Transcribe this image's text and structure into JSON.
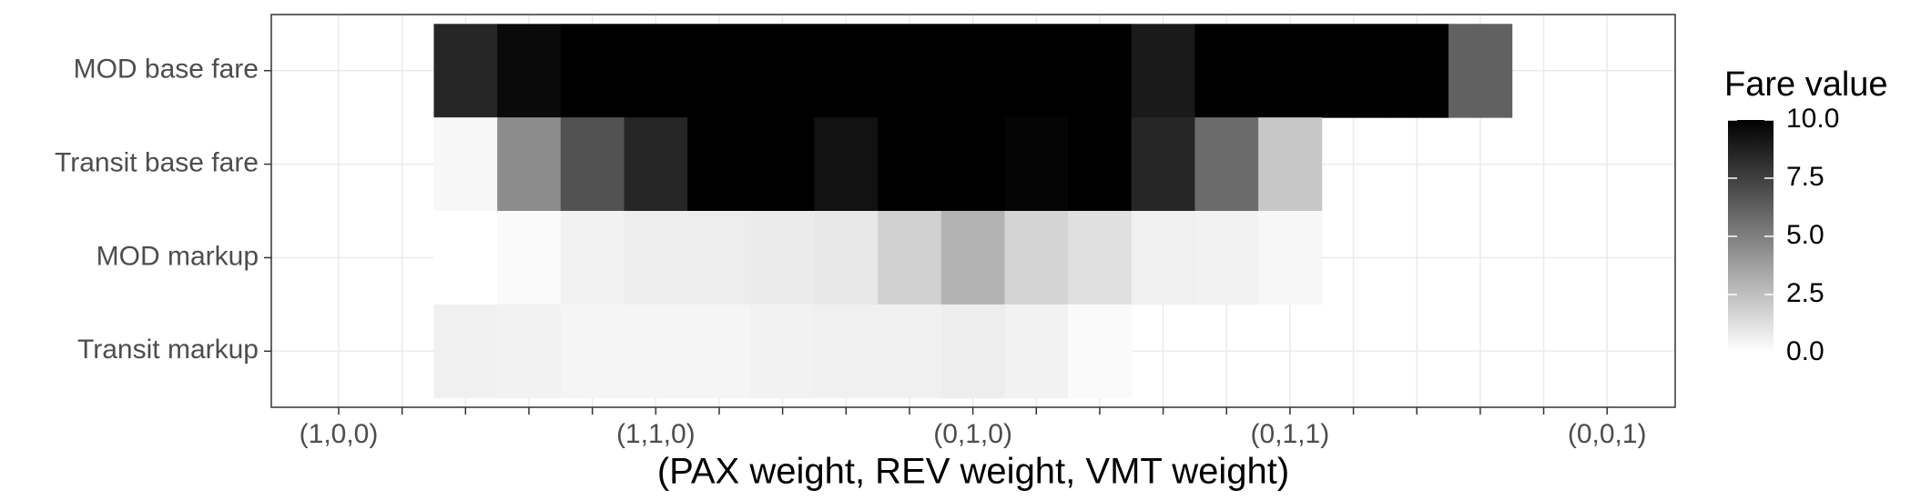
{
  "chart_data": {
    "type": "heatmap",
    "x_label": "(PAX weight, REV weight, VMT weight)",
    "x": [
      "(1,0,0)",
      null,
      null,
      null,
      null,
      "(1,1,0)",
      null,
      null,
      null,
      null,
      "(0,1,0)",
      null,
      null,
      null,
      null,
      "(0,1,1)",
      null,
      null,
      null,
      null,
      "(0,0,1)"
    ],
    "y": [
      "MOD base fare",
      "Transit base fare",
      "MOD markup",
      "Transit markup"
    ],
    "values": [
      [
        null,
        null,
        8.5,
        9.6,
        10,
        10,
        10,
        10,
        10,
        10,
        10,
        10,
        10,
        9.0,
        10,
        10,
        10,
        10,
        6.2,
        null,
        null
      ],
      [
        null,
        null,
        0.3,
        4.5,
        6.8,
        8.5,
        10,
        10,
        9.3,
        10,
        10,
        9.8,
        10,
        8.5,
        5.8,
        2.2,
        null,
        null,
        null,
        null,
        null
      ],
      [
        null,
        null,
        0.0,
        0.2,
        0.5,
        0.7,
        0.7,
        0.8,
        0.9,
        1.8,
        3.0,
        1.7,
        1.2,
        0.6,
        0.5,
        0.3,
        null,
        null,
        null,
        null,
        null
      ],
      [
        null,
        null,
        0.6,
        0.5,
        0.4,
        0.4,
        0.4,
        0.5,
        0.6,
        0.6,
        0.7,
        0.5,
        0.2,
        null,
        null,
        null,
        null,
        null,
        null,
        null,
        null
      ]
    ],
    "legend_title": "Fare value",
    "zlim": [
      0,
      10
    ],
    "zticks": [
      {
        "value": 0,
        "label": "0.0"
      },
      {
        "value": 2.5,
        "label": "2.5"
      },
      {
        "value": 5,
        "label": "5.0"
      },
      {
        "value": 7.5,
        "label": "7.5"
      },
      {
        "value": 10,
        "label": "10.0"
      }
    ],
    "low_color": "#ffffff",
    "high_color": "#000000",
    "grid": true
  }
}
